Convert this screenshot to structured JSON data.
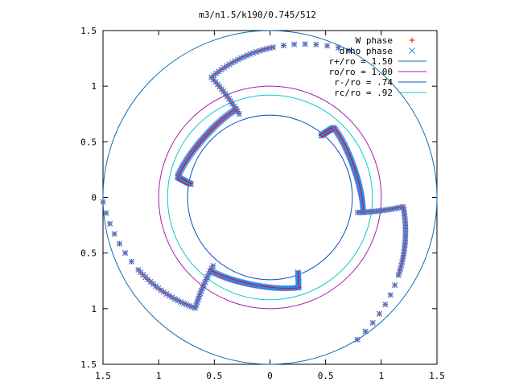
{
  "chart_data": {
    "type": "scatter",
    "title": "m3/n1.5/k190/0.745/512",
    "xlabel": "",
    "ylabel": "",
    "xlim": [
      -1.5,
      1.5
    ],
    "ylim": [
      -1.5,
      1.5
    ],
    "x_tick_labels": [
      "1.5",
      "1",
      "0.5",
      "0",
      "0.5",
      "1",
      "1.5"
    ],
    "y_tick_labels": [
      "1.5",
      "1",
      "0.5",
      "0",
      "0.5",
      "1",
      "1.5"
    ],
    "grid": false,
    "legend": "top-right",
    "circles": [
      {
        "name": "r+/ro = 1.50",
        "radius": 1.5,
        "color": "#0a6fb0"
      },
      {
        "name": "ro/ro = 1.00",
        "radius": 1.0,
        "color": "#a020b0"
      },
      {
        "name": "r-/ro = .74",
        "radius": 0.74,
        "color": "#1050c0"
      },
      {
        "name": "rc/ro = .92",
        "radius": 0.92,
        "color": "#10c8c8"
      }
    ],
    "series": [
      {
        "name": "W phase",
        "marker": "+",
        "color": "#ff0000"
      },
      {
        "name": "drho phase",
        "marker": "x",
        "color": "#1e90ff"
      }
    ],
    "arms": [
      {
        "angle_deg": 0
      },
      {
        "angle_deg": 120
      },
      {
        "angle_deg": 240
      }
    ]
  }
}
